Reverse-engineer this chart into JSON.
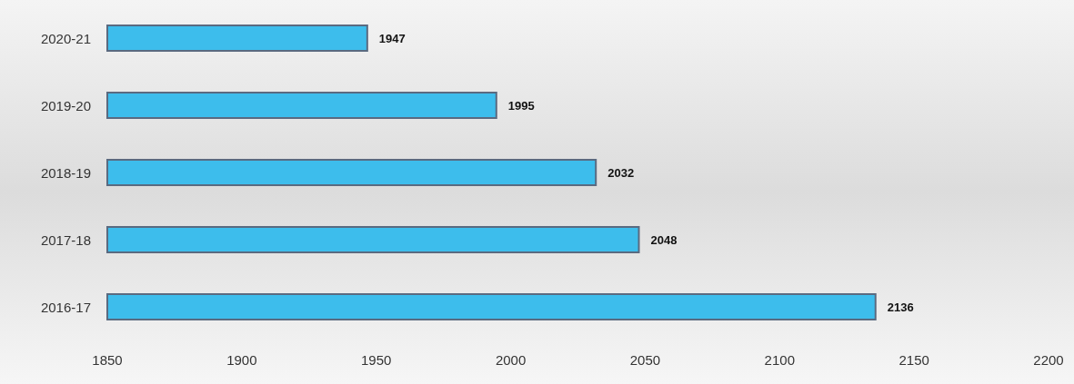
{
  "chart_data": {
    "type": "bar",
    "orientation": "horizontal",
    "categories": [
      "2020-21",
      "2019-20",
      "2018-19",
      "2017-18",
      "2016-17"
    ],
    "values": [
      1947,
      1995,
      2032,
      2048,
      2136
    ],
    "color": "#3dbdec",
    "xlim": [
      1850,
      2200
    ],
    "xticks": [
      1850,
      1900,
      1950,
      2000,
      2050,
      2100,
      2150,
      2200
    ],
    "data_labels": true
  }
}
